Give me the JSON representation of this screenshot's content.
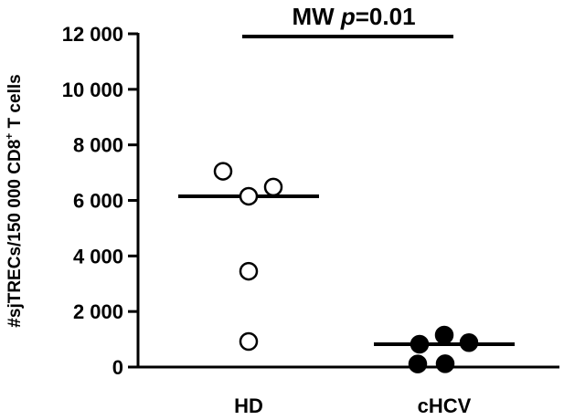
{
  "chart_data": {
    "type": "scatter",
    "title": "",
    "ylabel": "#sjTRECs/150 000 CD8",
    "ylabel_sup": "+",
    "ylabel_tail": " T cells",
    "xlabel": "",
    "ylim": [
      0,
      12000
    ],
    "yticks": [
      {
        "value": 0,
        "label": "0"
      },
      {
        "value": 2000,
        "label": "2 000"
      },
      {
        "value": 4000,
        "label": "4 000"
      },
      {
        "value": 6000,
        "label": "6 000"
      },
      {
        "value": 8000,
        "label": "8 000"
      },
      {
        "value": 10000,
        "label": "10 000"
      },
      {
        "value": 12000,
        "label": "12 000"
      }
    ],
    "categories": [
      "HD",
      "cHCV"
    ],
    "grid": false,
    "series": [
      {
        "category": "HD",
        "marker": "open-circle",
        "points": [
          7050,
          6150,
          6480,
          3450,
          920
        ],
        "median": 6150
      },
      {
        "category": "cHCV",
        "marker": "filled-circle",
        "points": [
          1150,
          820,
          880,
          110,
          120
        ],
        "median": 820
      }
    ],
    "annotation": {
      "text_prefix": "MW ",
      "text_italic": "p",
      "text_suffix": "=0.01"
    }
  }
}
